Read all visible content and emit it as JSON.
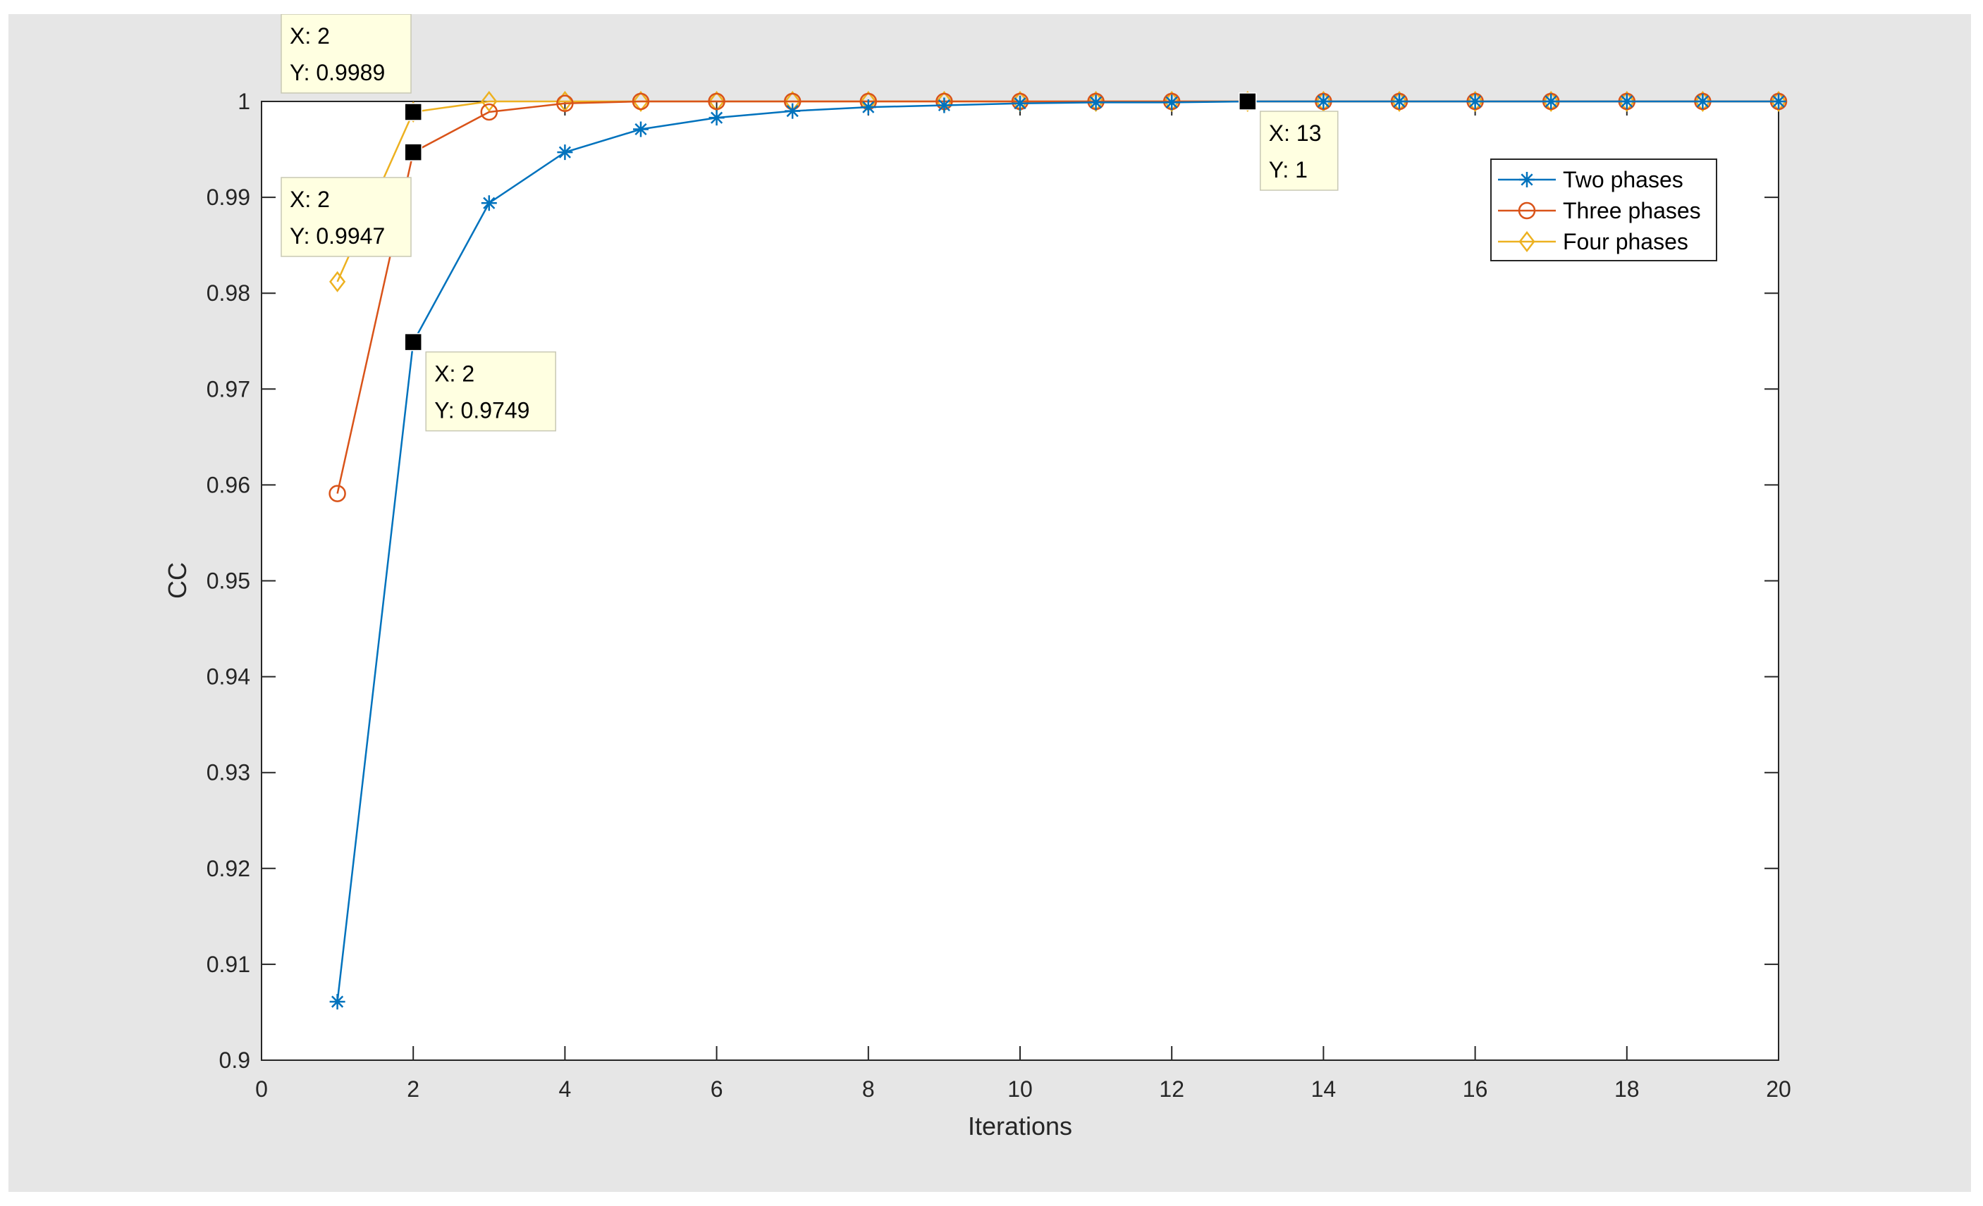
{
  "chart_data": {
    "type": "line",
    "xlabel": "Iterations",
    "ylabel": "CC",
    "xlim": [
      0,
      20
    ],
    "ylim": [
      0.9,
      1
    ],
    "x_ticks": [
      0,
      2,
      4,
      6,
      8,
      10,
      12,
      14,
      16,
      18,
      20
    ],
    "y_ticks": [
      0.9,
      0.91,
      0.92,
      0.93,
      0.94,
      0.95,
      0.96,
      0.97,
      0.98,
      0.99,
      1
    ],
    "y_tick_labels": [
      "0.9",
      "0.91",
      "0.92",
      "0.93",
      "0.94",
      "0.95",
      "0.96",
      "0.97",
      "0.98",
      "0.99",
      "1"
    ],
    "grid": false,
    "legend_position": "top-right",
    "x": [
      1,
      2,
      3,
      4,
      5,
      6,
      7,
      8,
      9,
      10,
      11,
      12,
      13,
      14,
      15,
      16,
      17,
      18,
      19,
      20
    ],
    "series": [
      {
        "name": "Two phases",
        "color": "#0072bd",
        "marker": "asterisk",
        "values": [
          0.9061,
          0.9749,
          0.9894,
          0.9947,
          0.9971,
          0.9983,
          0.999,
          0.9994,
          0.9996,
          0.9998,
          0.9999,
          0.9999,
          1.0,
          1.0,
          1.0,
          1.0,
          1.0,
          1.0,
          1.0,
          1.0
        ]
      },
      {
        "name": "Three phases",
        "color": "#d95319",
        "marker": "circle",
        "values": [
          0.9591,
          0.9947,
          0.9989,
          0.9998,
          1.0,
          1.0,
          1.0,
          1.0,
          1.0,
          1.0,
          1.0,
          1.0,
          1.0,
          1.0,
          1.0,
          1.0,
          1.0,
          1.0,
          1.0,
          1.0
        ]
      },
      {
        "name": "Four phases",
        "color": "#edb120",
        "marker": "diamond",
        "values": [
          0.9812,
          0.9989,
          1.0,
          1.0,
          1.0,
          1.0,
          1.0,
          1.0,
          1.0,
          1.0,
          1.0,
          1.0,
          1.0,
          1.0,
          1.0,
          1.0,
          1.0,
          1.0,
          1.0,
          1.0
        ]
      }
    ],
    "datatips": [
      {
        "x": 2,
        "y": 0.9989,
        "x_text": "X: 2",
        "y_text": "Y: 0.9989",
        "side": "above-left"
      },
      {
        "x": 2,
        "y": 0.9947,
        "x_text": "X: 2",
        "y_text": "Y: 0.9947",
        "side": "below-left"
      },
      {
        "x": 2,
        "y": 0.9749,
        "x_text": "X: 2",
        "y_text": "Y: 0.9749",
        "side": "below-right"
      },
      {
        "x": 13,
        "y": 1.0,
        "x_text": "X: 13",
        "y_text": "Y: 1",
        "side": "below-right"
      }
    ]
  }
}
